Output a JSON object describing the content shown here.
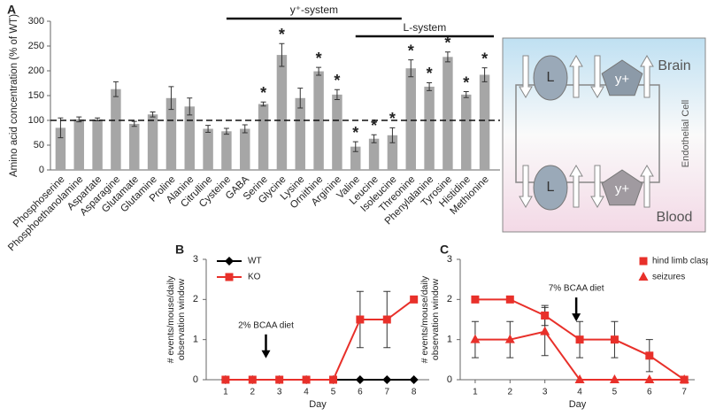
{
  "chart_data": [
    {
      "type": "bar",
      "panel": "A",
      "y_label": "Amino acid concentration (% of WT)",
      "categories": [
        "Phosphoserine",
        "Phosphoethanolamine",
        "Aspartate",
        "Asparagine",
        "Glutamate",
        "Glutamine",
        "Proline",
        "Alanine",
        "Citrulline",
        "Cysteine",
        "GABA",
        "Serine",
        "Glycine",
        "Lysine",
        "Ornithine",
        "Arginine",
        "Valine",
        "Leucine",
        "Isoleucine",
        "Threonine",
        "Phenylalanine",
        "Tyrosine",
        "Histidine",
        "Methionine"
      ],
      "values": [
        85,
        102,
        102,
        163,
        93,
        112,
        145,
        128,
        83,
        78,
        83,
        133,
        232,
        145,
        199,
        152,
        47,
        63,
        70,
        205,
        168,
        228,
        152,
        192
      ],
      "errors": [
        20,
        5,
        3,
        15,
        5,
        5,
        23,
        17,
        7,
        6,
        8,
        4,
        23,
        20,
        8,
        10,
        10,
        8,
        15,
        17,
        8,
        10,
        6,
        14
      ],
      "significance": [
        null,
        null,
        null,
        null,
        null,
        null,
        null,
        null,
        null,
        null,
        null,
        "*",
        "*",
        null,
        "*",
        "*",
        "*",
        "*",
        "*",
        "*",
        "*",
        "*",
        "*",
        "*"
      ],
      "color": "#a6a6a6",
      "ylim": [
        0,
        300
      ],
      "yticks": [
        0,
        50,
        100,
        150,
        200,
        250,
        300
      ],
      "reference_line": 100,
      "brackets": [
        {
          "label": "y⁺-system",
          "from": "Cysteine",
          "to": "Isoleucine"
        },
        {
          "label": "L-system",
          "from": "Valine",
          "to": "Methionine"
        }
      ]
    },
    {
      "type": "line",
      "panel": "B",
      "x_label": "Day",
      "y_label": [
        "# events/mouse/daily",
        "observation window"
      ],
      "x": [
        1,
        2,
        3,
        4,
        5,
        6,
        7,
        8
      ],
      "xlim": [
        0.28,
        8.57
      ],
      "xticks": [
        1,
        2,
        3,
        4,
        5,
        6,
        7,
        8
      ],
      "ylim": [
        0,
        3
      ],
      "yticks": [
        0,
        1,
        2,
        3
      ],
      "legend": "upper left",
      "series": [
        {
          "name": "WT",
          "color": "#000000",
          "marker": "diamond",
          "values": [
            0,
            0,
            0,
            0,
            0,
            0,
            0,
            0
          ],
          "errors": [
            null,
            null,
            null,
            null,
            null,
            null,
            null,
            null
          ]
        },
        {
          "name": "KO",
          "color": "#e8302a",
          "marker": "square",
          "values": [
            0,
            0,
            0,
            0,
            0,
            1.5,
            1.5,
            2
          ],
          "errors": [
            null,
            null,
            null,
            null,
            null,
            0.7,
            0.7,
            null
          ]
        }
      ],
      "annotation": {
        "text": "2% BCAA diet",
        "x": 2.5,
        "y": 1.35
      }
    },
    {
      "type": "line",
      "panel": "C",
      "x_label": "Day",
      "y_label": [
        "# events/mouse/daily",
        "observation window"
      ],
      "x": [
        1,
        2,
        3,
        4,
        5,
        6,
        7
      ],
      "xlim": [
        0.57,
        7.3
      ],
      "xticks": [
        1,
        2,
        3,
        4,
        5,
        6,
        7
      ],
      "ylim": [
        0,
        3
      ],
      "yticks": [
        0,
        1,
        2,
        3
      ],
      "legend": "upper right",
      "series": [
        {
          "name": "hind limb clasping",
          "color": "#e8302a",
          "marker": "square",
          "values": [
            2,
            2,
            1.6,
            1,
            1,
            0.6,
            0
          ],
          "errors": [
            null,
            null,
            0.25,
            0.45,
            0.45,
            0.4,
            null
          ]
        },
        {
          "name": "seizures",
          "color": "#e8302a",
          "marker": "triangle",
          "values": [
            1,
            1,
            1.2,
            0,
            0,
            0,
            0
          ],
          "errors": [
            0.45,
            0.45,
            0.6,
            null,
            null,
            null,
            null
          ]
        }
      ],
      "annotation": {
        "text": "7% BCAA diet",
        "x": 3.9,
        "y": 2.27
      }
    }
  ],
  "diagram": {
    "top": "Brain",
    "bottom": "Blood",
    "side": "Endothelial Cell",
    "transporters": [
      "L",
      "y+"
    ]
  }
}
